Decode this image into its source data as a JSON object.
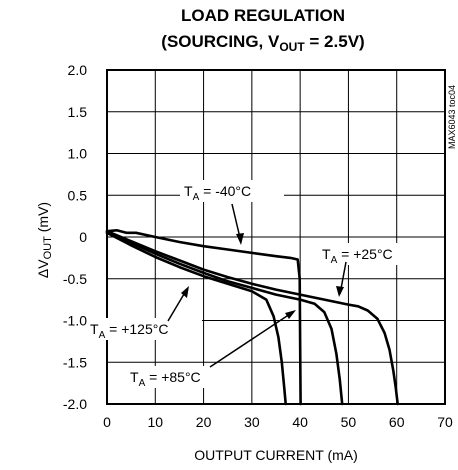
{
  "chart_data": {
    "type": "line",
    "title": "LOAD REGULATION",
    "subtitle": {
      "prefix": "(SOURCING, V",
      "sub": "OUT",
      "suffix": " = 2.5V)"
    },
    "xlabel": "OUTPUT CURRENT (mA)",
    "ylabel": {
      "prefix": "ΔV",
      "sub": "OUT",
      "suffix": " (mV)"
    },
    "xlim": [
      0,
      70
    ],
    "ylim": [
      -2.0,
      2.0
    ],
    "xticks": [
      "0",
      "10",
      "20",
      "30",
      "40",
      "50",
      "60",
      "70"
    ],
    "yticks": [
      "2.0",
      "1.5",
      "1.0",
      "0.5",
      "0",
      "-0.5",
      "-1.0",
      "-1.5",
      "-2.0"
    ],
    "grid": true,
    "figure_code": "MAX6043 toc04",
    "series": [
      {
        "name": "T_A = -40°C",
        "label": {
          "pre": "T",
          "sub": "A",
          "post": " = -40°C"
        },
        "points": [
          [
            0,
            0.07
          ],
          [
            2,
            0.08
          ],
          [
            4,
            0.05
          ],
          [
            6,
            0.05
          ],
          [
            10,
            0.0
          ],
          [
            15,
            -0.06
          ],
          [
            20,
            -0.11
          ],
          [
            25,
            -0.15
          ],
          [
            30,
            -0.19
          ],
          [
            35,
            -0.23
          ],
          [
            38,
            -0.25
          ],
          [
            39.5,
            -0.27
          ],
          [
            39.9,
            -0.5
          ],
          [
            40.0,
            -1.2
          ],
          [
            40.1,
            -2.0
          ]
        ]
      },
      {
        "name": "T_A = +25°C",
        "label": {
          "pre": "T",
          "sub": "A",
          "post": " = +25°C"
        },
        "points": [
          [
            0,
            0.07
          ],
          [
            5,
            -0.05
          ],
          [
            10,
            -0.17
          ],
          [
            15,
            -0.28
          ],
          [
            20,
            -0.39
          ],
          [
            25,
            -0.48
          ],
          [
            30,
            -0.56
          ],
          [
            35,
            -0.63
          ],
          [
            40,
            -0.69
          ],
          [
            45,
            -0.75
          ],
          [
            50,
            -0.81
          ],
          [
            52,
            -0.83
          ],
          [
            54,
            -0.88
          ],
          [
            56,
            -0.98
          ],
          [
            57.5,
            -1.15
          ],
          [
            58.5,
            -1.35
          ],
          [
            59.3,
            -1.6
          ],
          [
            59.8,
            -1.8
          ],
          [
            60.2,
            -2.0
          ]
        ]
      },
      {
        "name": "T_A = +85°C",
        "label": {
          "pre": "T",
          "sub": "A",
          "post": " = +85°C"
        },
        "points": [
          [
            0,
            0.05
          ],
          [
            5,
            -0.07
          ],
          [
            10,
            -0.2
          ],
          [
            15,
            -0.32
          ],
          [
            20,
            -0.43
          ],
          [
            25,
            -0.53
          ],
          [
            30,
            -0.61
          ],
          [
            35,
            -0.69
          ],
          [
            40,
            -0.75
          ],
          [
            43,
            -0.8
          ],
          [
            45,
            -0.9
          ],
          [
            46.5,
            -1.1
          ],
          [
            47.5,
            -1.4
          ],
          [
            48.2,
            -1.7
          ],
          [
            48.7,
            -2.0
          ]
        ]
      },
      {
        "name": "T_A = +125°C",
        "label": {
          "pre": "T",
          "sub": "A",
          "post": " = +125°C"
        },
        "points": [
          [
            0,
            0.05
          ],
          [
            5,
            -0.1
          ],
          [
            10,
            -0.24
          ],
          [
            15,
            -0.36
          ],
          [
            20,
            -0.47
          ],
          [
            25,
            -0.56
          ],
          [
            30,
            -0.65
          ],
          [
            33,
            -0.75
          ],
          [
            34.5,
            -0.95
          ],
          [
            35.5,
            -1.2
          ],
          [
            36.2,
            -1.5
          ],
          [
            36.7,
            -1.8
          ],
          [
            37,
            -2.0
          ]
        ]
      }
    ]
  }
}
